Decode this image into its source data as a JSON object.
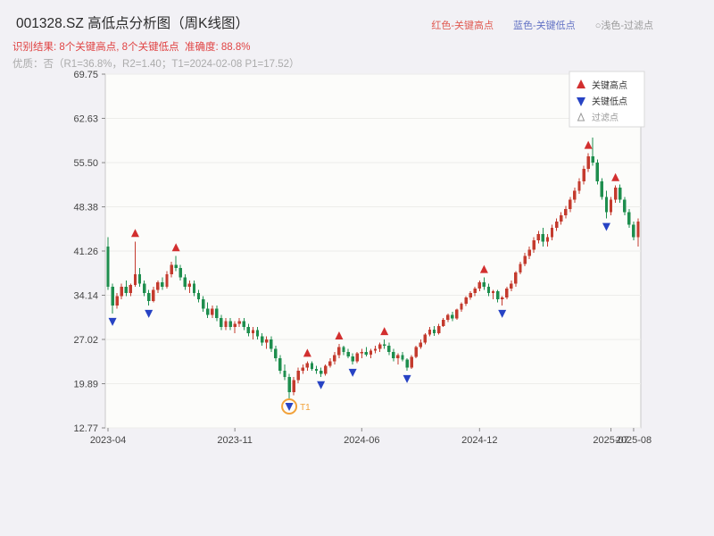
{
  "header": {
    "title": "001328.SZ 高低点分析图（周K线图）",
    "color_key": {
      "high": "红色-关键高点",
      "low": "蓝色-关键低点",
      "filtered": "○浅色-过滤点"
    },
    "result_line": "识别结果: 8个关键高点, 8个关键低点  准确度: 88.8%",
    "quality_line": "优质：否（R1=36.8%，R2=1.40；T1=2024-02-08 P1=17.52）"
  },
  "chart_data": {
    "type": "candlestick",
    "title": "001328.SZ 高低点分析图（周K线图）",
    "symbol": "001328.SZ",
    "period": "周K线",
    "ylim": [
      12.77,
      69.75
    ],
    "y_ticks": [
      69.75,
      62.63,
      55.5,
      48.38,
      41.26,
      34.14,
      27.02,
      19.89,
      12.77
    ],
    "x_ticks": [
      {
        "i": 0,
        "label": "2023-04"
      },
      {
        "i": 28,
        "label": "2023-11"
      },
      {
        "i": 56,
        "label": "2024-06"
      },
      {
        "i": 82,
        "label": "2024-12"
      },
      {
        "i": 111,
        "label": "2025-07"
      },
      {
        "i": 116,
        "label": "2025-08"
      }
    ],
    "candles": [
      [
        42.0,
        43.5,
        35.0,
        35.5
      ],
      [
        35.5,
        36.0,
        31.2,
        32.5
      ],
      [
        32.5,
        34.5,
        32.0,
        34.0
      ],
      [
        34.0,
        36.0,
        33.5,
        35.5
      ],
      [
        35.5,
        36.5,
        34.0,
        34.5
      ],
      [
        34.5,
        36.0,
        34.0,
        35.8
      ],
      [
        35.8,
        42.8,
        35.5,
        37.5
      ],
      [
        37.5,
        38.5,
        35.5,
        36.0
      ],
      [
        36.0,
        36.5,
        34.0,
        34.5
      ],
      [
        34.5,
        35.0,
        32.5,
        33.2
      ],
      [
        33.2,
        35.5,
        33.0,
        35.0
      ],
      [
        35.0,
        36.5,
        34.5,
        36.2
      ],
      [
        36.2,
        37.0,
        35.0,
        35.5
      ],
      [
        35.5,
        38.0,
        35.2,
        37.5
      ],
      [
        37.5,
        39.5,
        37.0,
        39.0
      ],
      [
        39.0,
        40.5,
        38.0,
        38.5
      ],
      [
        38.5,
        39.0,
        36.5,
        37.0
      ],
      [
        37.0,
        37.5,
        35.0,
        35.5
      ],
      [
        35.5,
        36.5,
        34.5,
        36.0
      ],
      [
        36.0,
        36.5,
        34.0,
        34.5
      ],
      [
        34.5,
        35.0,
        33.0,
        33.5
      ],
      [
        33.5,
        34.0,
        31.5,
        32.0
      ],
      [
        32.0,
        33.0,
        30.5,
        31.0
      ],
      [
        31.0,
        32.5,
        30.5,
        32.0
      ],
      [
        32.0,
        32.5,
        30.0,
        30.5
      ],
      [
        30.5,
        31.0,
        28.5,
        29.0
      ],
      [
        29.0,
        30.5,
        28.5,
        30.0
      ],
      [
        30.0,
        30.5,
        28.5,
        29.0
      ],
      [
        29.0,
        30.0,
        28.0,
        29.5
      ],
      [
        29.5,
        30.5,
        29.0,
        30.0
      ],
      [
        30.0,
        30.5,
        28.5,
        29.0
      ],
      [
        29.0,
        29.5,
        27.5,
        28.0
      ],
      [
        28.0,
        29.0,
        27.0,
        28.5
      ],
      [
        28.5,
        29.0,
        27.0,
        27.5
      ],
      [
        27.5,
        28.0,
        26.0,
        26.5
      ],
      [
        26.5,
        27.5,
        25.5,
        27.0
      ],
      [
        27.0,
        27.5,
        25.0,
        25.5
      ],
      [
        25.5,
        26.0,
        23.5,
        24.0
      ],
      [
        24.0,
        24.5,
        21.5,
        22.0
      ],
      [
        22.0,
        23.0,
        20.5,
        21.0
      ],
      [
        21.0,
        21.5,
        17.5,
        18.5
      ],
      [
        18.5,
        21.0,
        18.0,
        20.5
      ],
      [
        20.5,
        22.5,
        20.0,
        22.0
      ],
      [
        22.0,
        23.0,
        21.5,
        22.5
      ],
      [
        22.5,
        23.5,
        22.0,
        23.2
      ],
      [
        23.2,
        23.5,
        22.0,
        22.3
      ],
      [
        22.3,
        22.8,
        21.5,
        22.0
      ],
      [
        22.0,
        22.5,
        21.0,
        21.5
      ],
      [
        21.5,
        23.0,
        21.2,
        22.8
      ],
      [
        22.8,
        24.0,
        22.5,
        23.5
      ],
      [
        23.5,
        25.0,
        23.0,
        24.5
      ],
      [
        24.5,
        26.3,
        24.0,
        25.8
      ],
      [
        25.8,
        26.0,
        24.5,
        25.0
      ],
      [
        25.0,
        25.5,
        24.0,
        24.3
      ],
      [
        24.3,
        24.8,
        23.0,
        23.5
      ],
      [
        23.5,
        25.0,
        23.2,
        24.8
      ],
      [
        24.8,
        25.5,
        24.0,
        25.0
      ],
      [
        25.0,
        25.8,
        24.3,
        24.6
      ],
      [
        24.6,
        25.5,
        24.0,
        25.2
      ],
      [
        25.2,
        26.0,
        24.8,
        25.5
      ],
      [
        25.5,
        26.5,
        25.0,
        26.2
      ],
      [
        26.2,
        27.0,
        25.5,
        26.0
      ],
      [
        26.0,
        26.5,
        24.5,
        25.0
      ],
      [
        25.0,
        25.5,
        23.5,
        24.0
      ],
      [
        24.0,
        24.8,
        23.0,
        24.5
      ],
      [
        24.5,
        25.0,
        23.5,
        23.8
      ],
      [
        23.8,
        24.0,
        22.0,
        22.5
      ],
      [
        22.5,
        24.5,
        22.3,
        24.2
      ],
      [
        24.2,
        26.0,
        24.0,
        25.8
      ],
      [
        25.8,
        27.0,
        25.5,
        26.5
      ],
      [
        26.5,
        28.0,
        26.2,
        27.8
      ],
      [
        27.8,
        29.0,
        27.5,
        28.6
      ],
      [
        28.6,
        29.2,
        27.6,
        28.0
      ],
      [
        28.0,
        29.5,
        27.8,
        29.2
      ],
      [
        29.2,
        30.5,
        29.0,
        30.2
      ],
      [
        30.2,
        31.2,
        29.8,
        31.0
      ],
      [
        31.0,
        31.5,
        30.0,
        30.4
      ],
      [
        30.4,
        32.0,
        30.2,
        31.8
      ],
      [
        31.8,
        33.0,
        31.5,
        32.8
      ],
      [
        32.8,
        34.0,
        32.4,
        33.8
      ],
      [
        33.8,
        34.8,
        33.4,
        34.5
      ],
      [
        34.5,
        35.5,
        34.0,
        35.2
      ],
      [
        35.2,
        36.5,
        34.8,
        36.2
      ],
      [
        36.2,
        37.0,
        35.0,
        35.5
      ],
      [
        35.5,
        36.0,
        34.0,
        34.5
      ],
      [
        34.5,
        35.0,
        33.5,
        34.8
      ],
      [
        34.8,
        35.0,
        33.0,
        33.5
      ],
      [
        33.5,
        34.0,
        32.5,
        33.8
      ],
      [
        33.8,
        35.5,
        33.5,
        35.2
      ],
      [
        35.2,
        36.5,
        34.8,
        36.0
      ],
      [
        36.0,
        38.0,
        35.5,
        37.8
      ],
      [
        37.8,
        39.5,
        37.5,
        39.2
      ],
      [
        39.2,
        41.0,
        38.8,
        40.5
      ],
      [
        40.5,
        42.0,
        40.0,
        41.5
      ],
      [
        41.5,
        43.5,
        41.0,
        43.0
      ],
      [
        43.0,
        44.5,
        42.5,
        44.0
      ],
      [
        44.0,
        45.0,
        42.0,
        42.8
      ],
      [
        42.8,
        44.0,
        42.0,
        43.5
      ],
      [
        43.5,
        45.5,
        43.0,
        45.0
      ],
      [
        45.0,
        46.5,
        44.5,
        46.0
      ],
      [
        46.0,
        47.5,
        45.5,
        47.0
      ],
      [
        47.0,
        48.5,
        46.5,
        48.0
      ],
      [
        48.0,
        50.0,
        47.5,
        49.5
      ],
      [
        49.5,
        51.5,
        49.0,
        51.0
      ],
      [
        51.0,
        53.0,
        50.5,
        52.5
      ],
      [
        52.5,
        55.0,
        52.0,
        54.5
      ],
      [
        54.5,
        57.0,
        54.0,
        56.5
      ],
      [
        56.5,
        59.5,
        55.0,
        55.5
      ],
      [
        55.5,
        56.0,
        52.0,
        52.5
      ],
      [
        52.5,
        53.0,
        49.5,
        50.0
      ],
      [
        50.0,
        51.0,
        46.5,
        47.5
      ],
      [
        47.5,
        50.0,
        47.0,
        49.5
      ],
      [
        49.5,
        51.8,
        49.0,
        51.5
      ],
      [
        51.5,
        52.0,
        49.0,
        49.5
      ],
      [
        49.5,
        50.0,
        47.0,
        47.5
      ],
      [
        47.5,
        48.0,
        45.0,
        45.5
      ],
      [
        45.5,
        46.0,
        43.0,
        43.5
      ],
      [
        43.5,
        46.5,
        42.0,
        46.0
      ]
    ],
    "key_highs": [
      {
        "i": 6,
        "price": 42.8
      },
      {
        "i": 15,
        "price": 40.5
      },
      {
        "i": 44,
        "price": 23.5
      },
      {
        "i": 51,
        "price": 26.3
      },
      {
        "i": 61,
        "price": 27.0
      },
      {
        "i": 83,
        "price": 37.0
      },
      {
        "i": 106,
        "price": 57.0
      },
      {
        "i": 112,
        "price": 51.8
      }
    ],
    "key_lows": [
      {
        "i": 1,
        "price": 31.2
      },
      {
        "i": 9,
        "price": 32.5
      },
      {
        "i": 40,
        "price": 17.52
      },
      {
        "i": 47,
        "price": 21.0
      },
      {
        "i": 54,
        "price": 23.0
      },
      {
        "i": 66,
        "price": 22.0
      },
      {
        "i": 87,
        "price": 32.5
      },
      {
        "i": 110,
        "price": 46.5
      }
    ],
    "highlight": {
      "i": 40,
      "price": 17.52,
      "label": "T1"
    },
    "legend": [
      "关键高点",
      "关键低点",
      "过滤点"
    ],
    "stats": {
      "key_high_count": 8,
      "key_low_count": 8,
      "accuracy": "88.8%",
      "premium": "否",
      "r1": "36.8%",
      "r2": "1.40",
      "t1_date": "2024-02-08",
      "p1": 17.52
    },
    "colors": {
      "up": "#c43b2e",
      "down": "#1e8e4e",
      "key_high": "#d22f2f",
      "key_low": "#2743c4",
      "highlight": "#f2a23a",
      "grid": "#ededea",
      "frame": "#c9c9c9",
      "plot_bg": "#fcfcfa",
      "page_bg": "#f2f1f5"
    }
  }
}
